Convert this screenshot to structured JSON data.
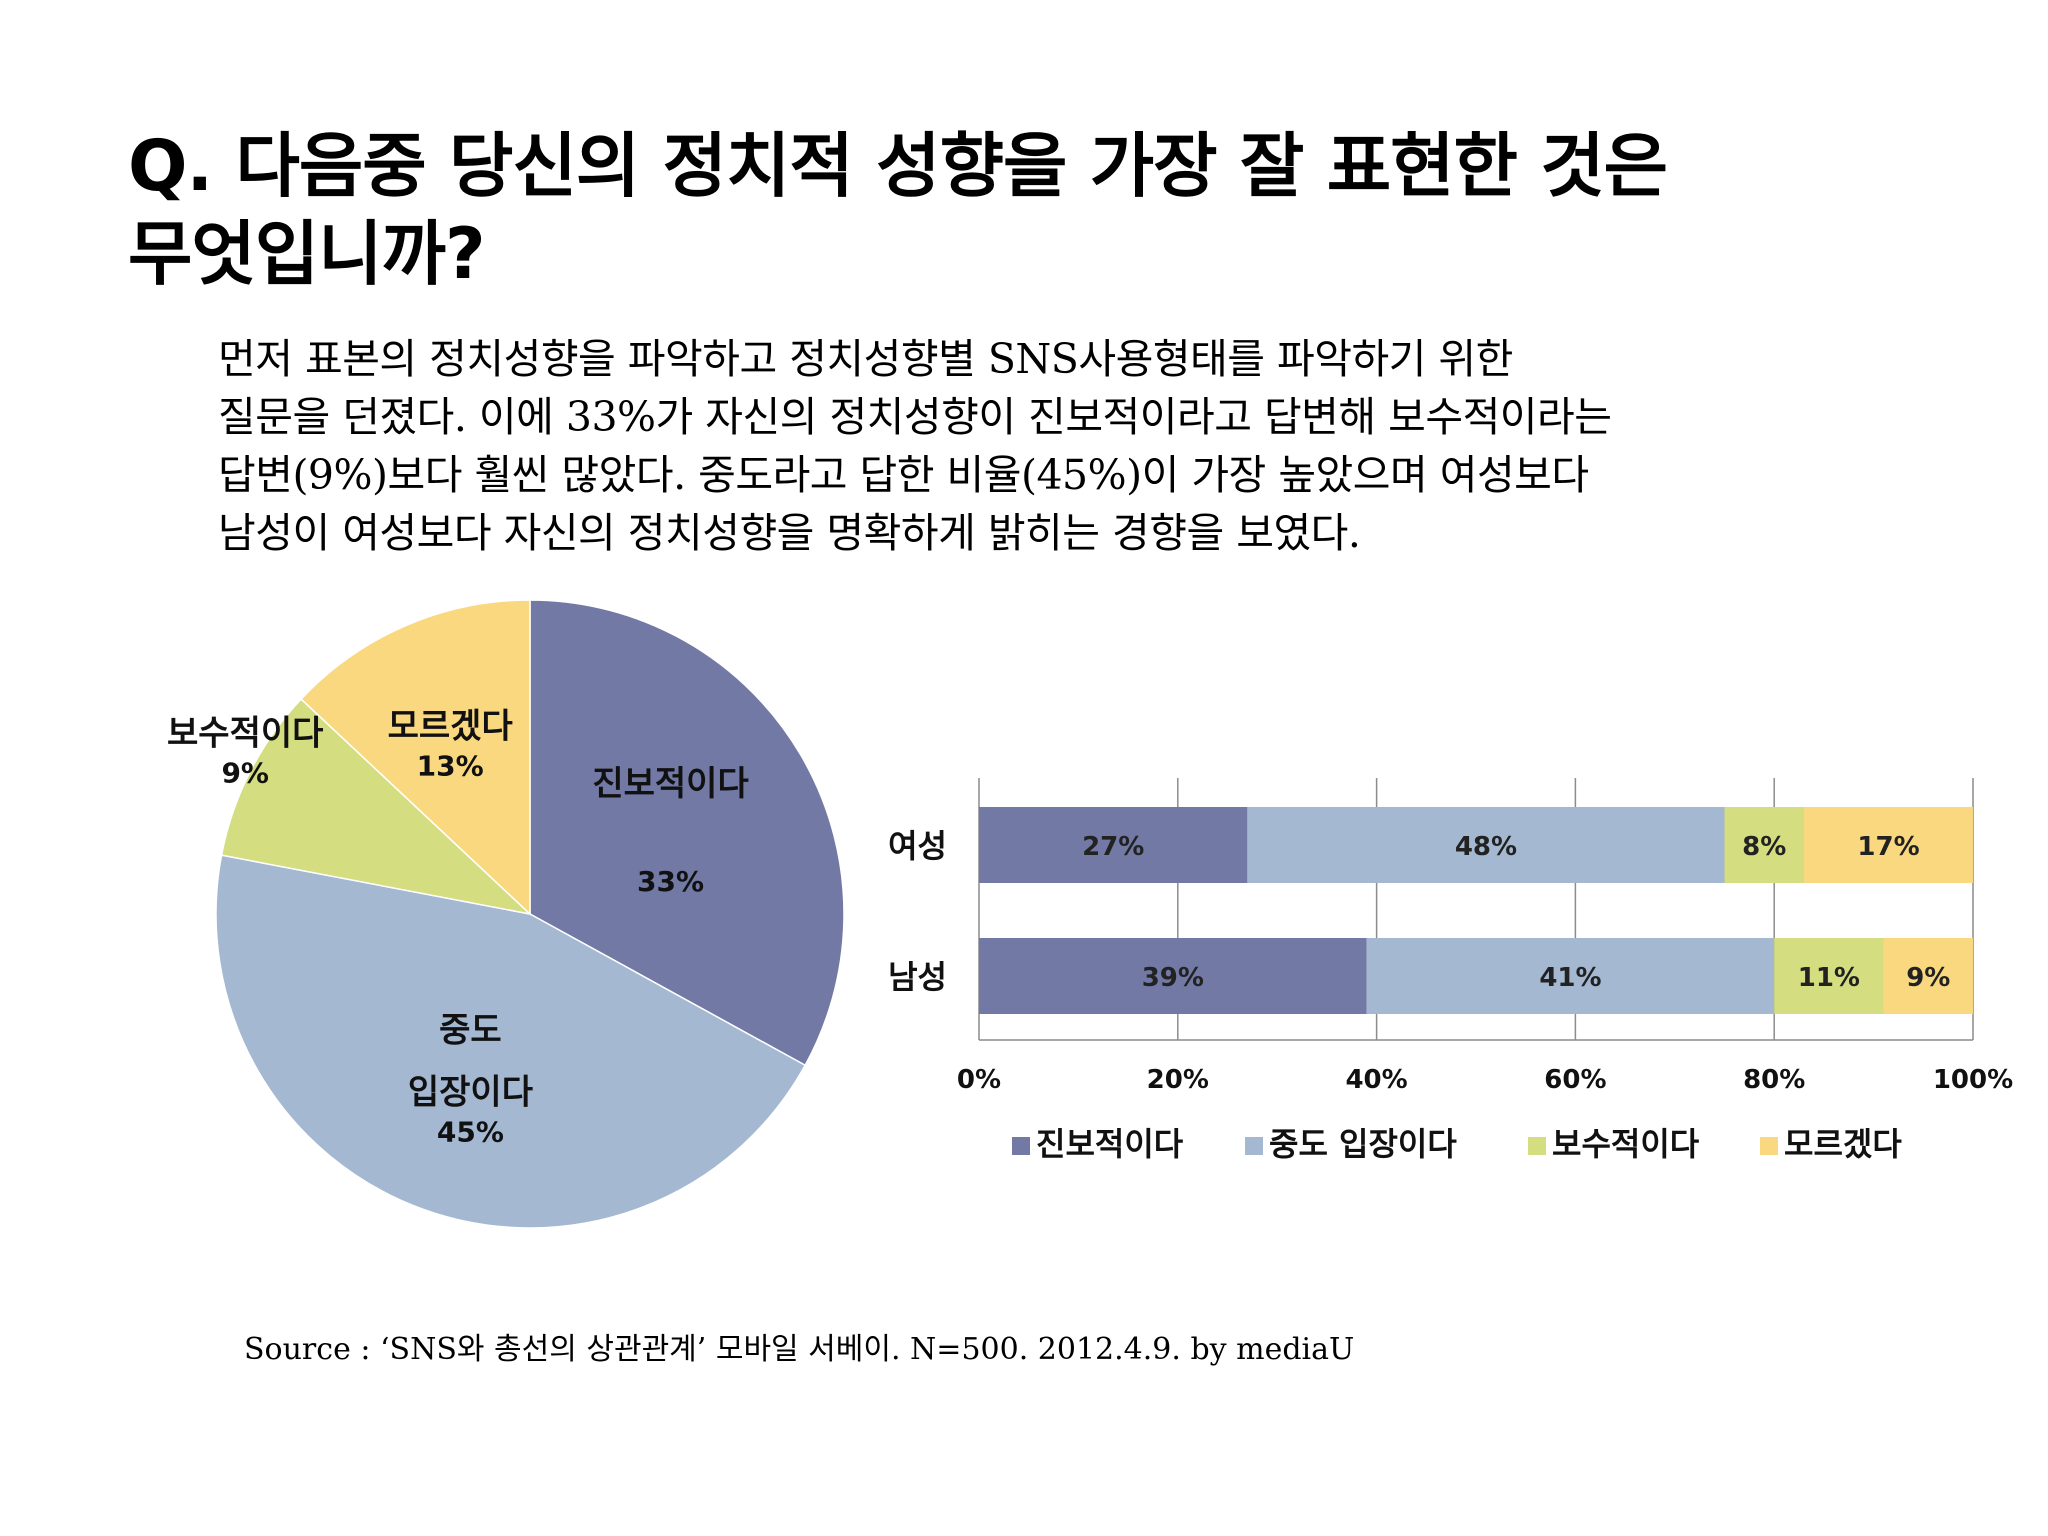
{
  "title": "Q. 다음중 당신의 정치적 성향을 가장 잘 표현한 것은\n무엇입니까?",
  "body_text": "먼저 표본의 정치성향을 파악하고 정치성향별 SNS사용형태를 파악하기 위한\n질문을 던졌다. 이에 33%가 자신의 정치성향이 진보적이라고 답변해 보수적이라는\n답변(9%)보다 훨씬 많았다. 중도라고 답한 비율(45%)이 가장 높았으며 여성보다\n남성이 여성보다 자신의 정치성향을 명확하게 밝히는 경향을 보였다.",
  "source": "Source : ‘SNS와 총선의 상관관계’ 모바일 서베이. N=500. 2012.4.9. by mediaU",
  "chart_data": [
    {
      "type": "pie",
      "title": "",
      "slices": [
        {
          "label": "진보적이다",
          "value": 33,
          "value_label": "33%",
          "color": "#7179a4"
        },
        {
          "label": "중도 입장이다",
          "display_lines": [
            "중도",
            "입장이다"
          ],
          "value": 45,
          "value_label": "45%",
          "color": "#a4b8d2"
        },
        {
          "label": "보수적이다",
          "value": 9,
          "value_label": "9%",
          "color": "#d4dd7f"
        },
        {
          "label": "모르겠다",
          "value": 13,
          "value_label": "13%",
          "color": "#f9d880"
        }
      ],
      "start": "12 o'clock",
      "direction": "clockwise"
    },
    {
      "type": "bar",
      "orientation": "horizontal",
      "stacked": "percent",
      "title": "",
      "xlabel": "",
      "ylabel": "",
      "categories": [
        "여성",
        "남성"
      ],
      "series": [
        {
          "name": "진보적이다",
          "values": [
            27,
            39
          ],
          "color": "#7179a4"
        },
        {
          "name": "중도 입장이다",
          "values": [
            48,
            41
          ],
          "color": "#a4b8d2"
        },
        {
          "name": "보수적이다",
          "values": [
            8,
            11
          ],
          "color": "#d4dd7f"
        },
        {
          "name": "모르겠다",
          "values": [
            17,
            9
          ],
          "color": "#f9d880"
        }
      ],
      "xlim": [
        0,
        100
      ],
      "xticks": [
        "0%",
        "20%",
        "40%",
        "60%",
        "80%",
        "100%"
      ],
      "grid": true,
      "legend": "bottom"
    }
  ]
}
